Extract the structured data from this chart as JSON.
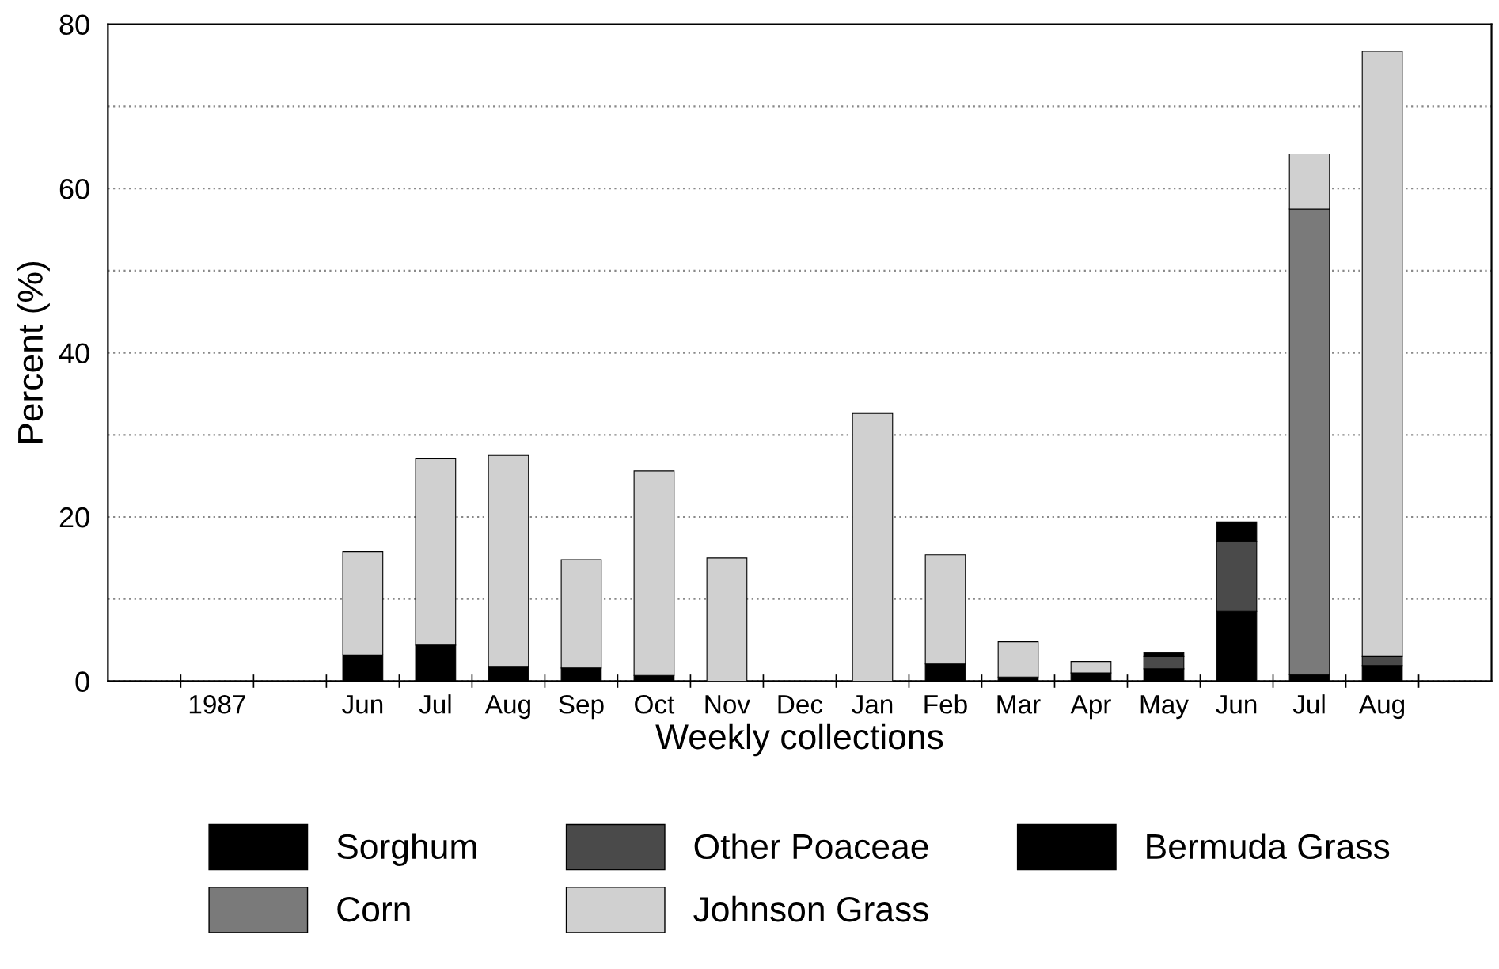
{
  "chart_data": {
    "type": "bar",
    "stacked": true,
    "xlabel": "Weekly collections",
    "ylabel": "Percent (%)",
    "categories": [
      null,
      "1987",
      null,
      "Jun",
      "Jul",
      "Aug",
      "Sep",
      "Oct",
      "Nov",
      "Dec",
      "Jan",
      "Feb",
      "Mar",
      "Apr",
      "May",
      "Jun",
      "Jul",
      "Aug",
      null
    ],
    "series": [
      {
        "name": "Sorghum",
        "color": "#000000",
        "values": [
          null,
          null,
          null,
          3.2,
          4.4,
          1.8,
          1.6,
          0.7,
          null,
          null,
          null,
          2.1,
          0.5,
          1.0,
          1.5,
          8.5,
          0.8,
          1.9,
          null
        ]
      },
      {
        "name": "Corn",
        "color": "#7a7a7a",
        "values": [
          null,
          null,
          null,
          null,
          null,
          null,
          null,
          null,
          null,
          null,
          null,
          null,
          null,
          null,
          null,
          null,
          56.7,
          null,
          null
        ]
      },
      {
        "name": "Other Poaceae",
        "color": "#4a4a4a",
        "values": [
          null,
          null,
          null,
          null,
          null,
          null,
          null,
          null,
          null,
          null,
          null,
          null,
          null,
          null,
          1.5,
          8.5,
          null,
          1.1,
          null
        ]
      },
      {
        "name": "Johnson Grass",
        "color": "#d0d0d0",
        "values": [
          null,
          null,
          null,
          12.6,
          22.7,
          25.7,
          13.2,
          24.9,
          15.0,
          null,
          32.6,
          13.3,
          4.3,
          1.4,
          null,
          null,
          6.7,
          73.7,
          null
        ]
      },
      {
        "name": "Bermuda Grass",
        "color": "#000000",
        "values": [
          null,
          null,
          null,
          null,
          null,
          null,
          null,
          null,
          null,
          null,
          null,
          null,
          null,
          null,
          0.5,
          2.4,
          null,
          null,
          null
        ]
      }
    ],
    "ylim": [
      0,
      80
    ],
    "yticks": [
      0,
      {
        "value": 10,
        "label": null
      },
      20,
      {
        "value": 30,
        "label": null
      },
      40,
      {
        "value": 50,
        "label": null
      },
      60,
      {
        "value": 70,
        "label": null
      },
      80
    ],
    "grid": "y",
    "legend": "bottom"
  }
}
